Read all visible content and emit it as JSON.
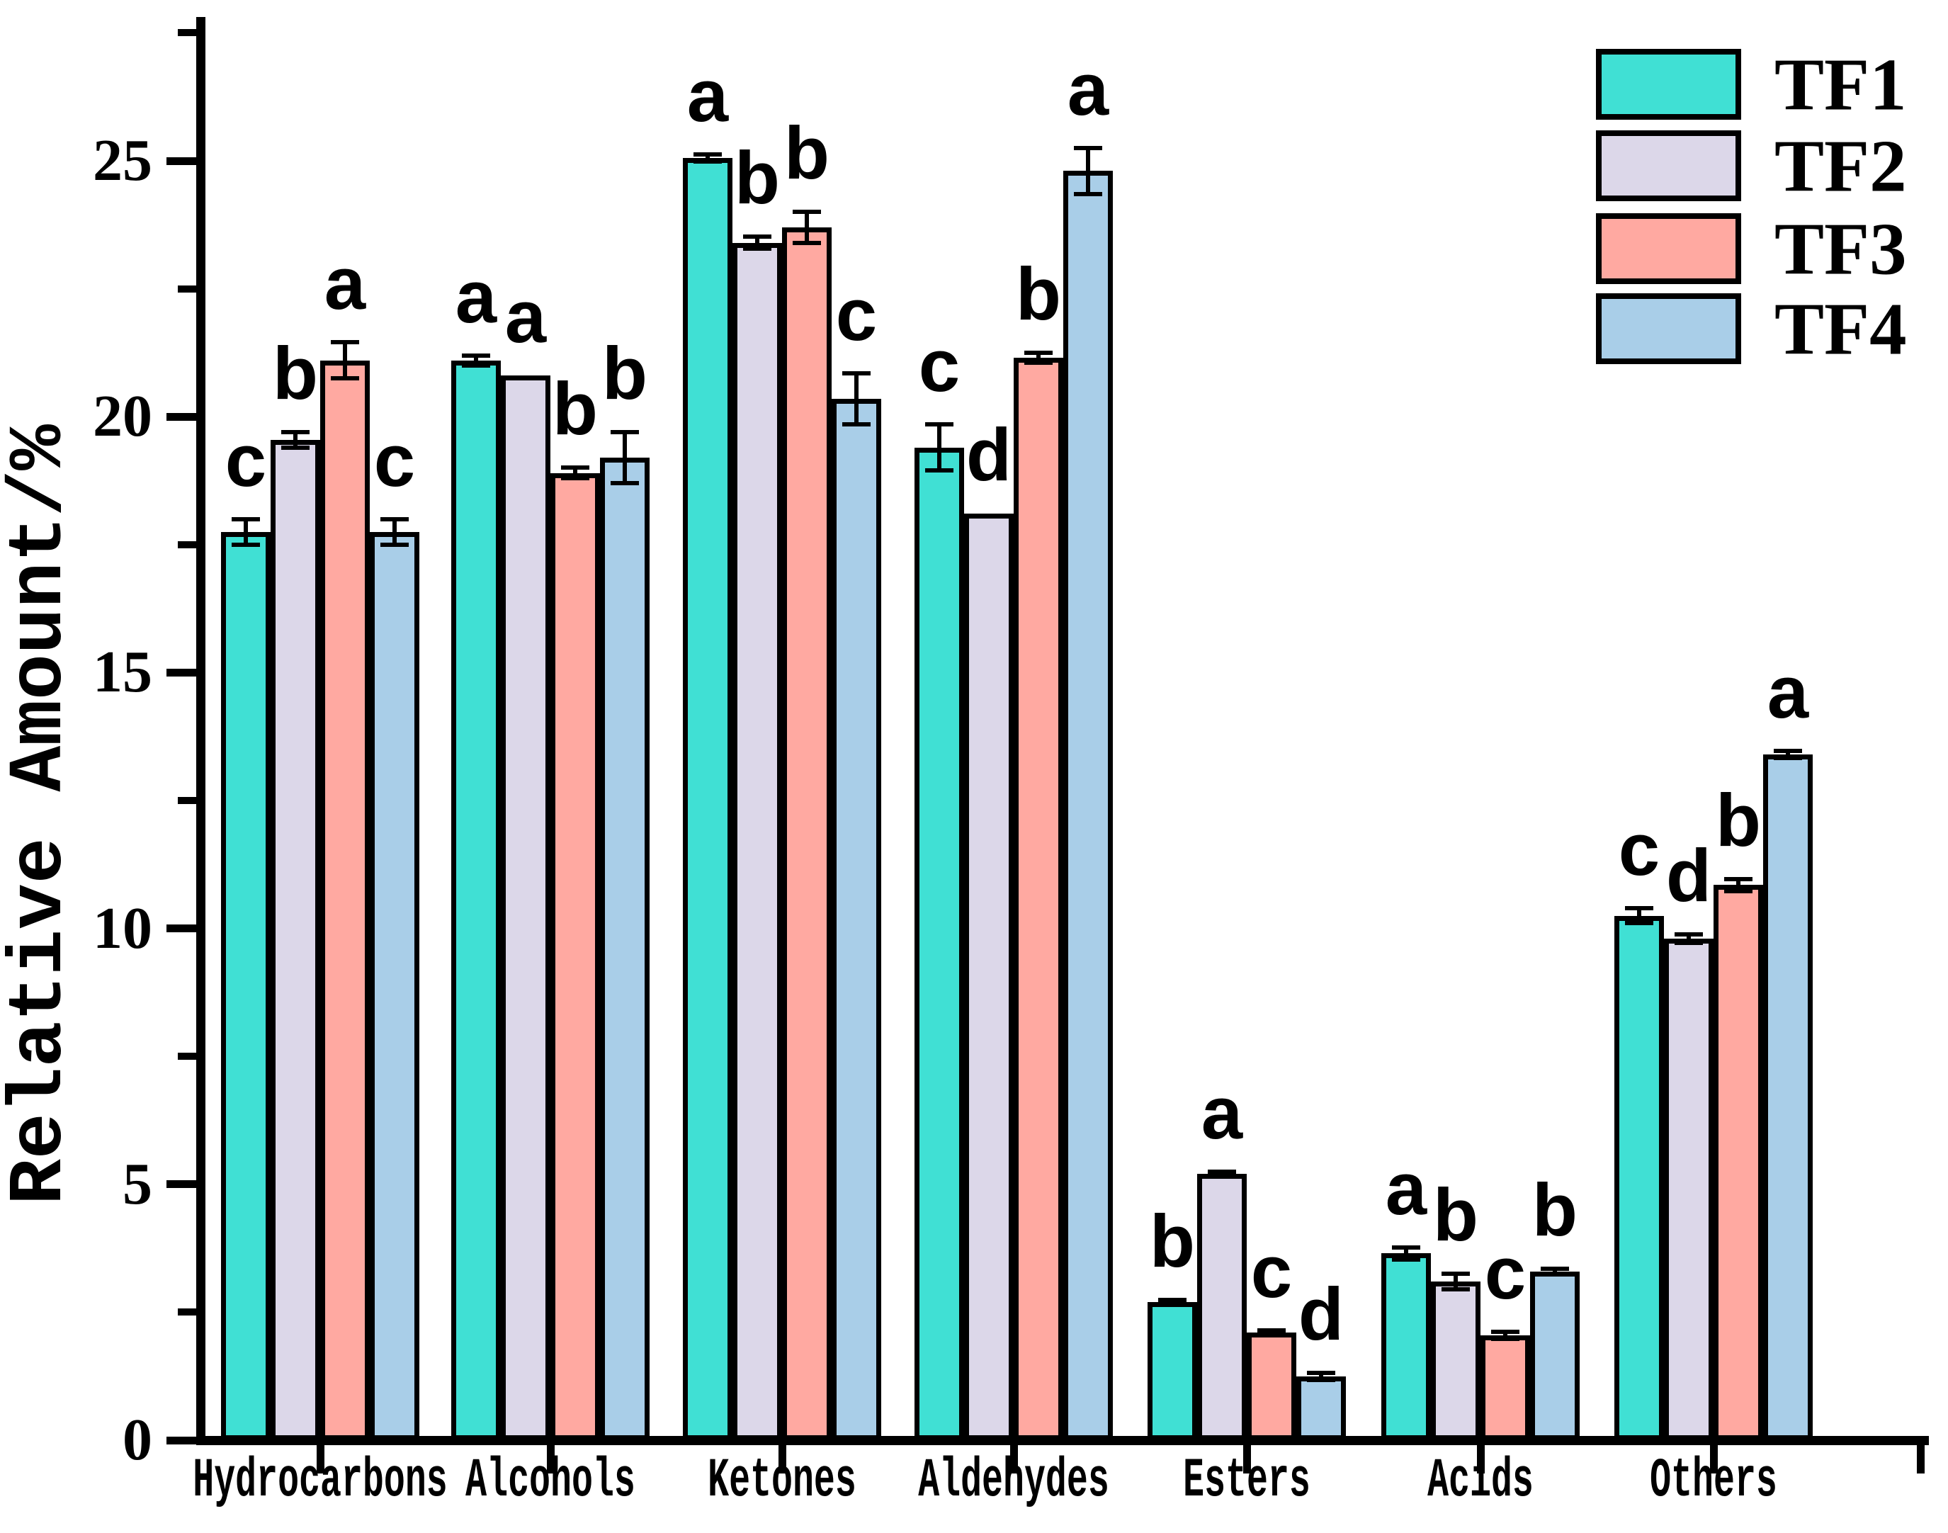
{
  "chart_data": {
    "type": "bar",
    "title": "",
    "xlabel": "",
    "ylabel": "Relative Amount/%",
    "ylim": [
      0,
      27.7
    ],
    "y_major_ticks": [
      0,
      5,
      10,
      15,
      20,
      25
    ],
    "y_minor_ticks": [
      2.5,
      7.5,
      12.5,
      17.5,
      22.5,
      27.5
    ],
    "grid": false,
    "legend_position": "top-right",
    "error_bars": true,
    "categories": [
      "Hydrocarbons",
      "Alcohols",
      "Ketones",
      "Aldehydes",
      "Esters",
      "Acids",
      "Others"
    ],
    "series": [
      {
        "name": "TF1",
        "color": "#40E0D4",
        "values": [
          17.75,
          21.1,
          25.05,
          19.4,
          2.7,
          3.65,
          10.25
        ],
        "errors": [
          0.25,
          0.1,
          0.07,
          0.45,
          0.04,
          0.12,
          0.15
        ],
        "sig_letters": [
          "c",
          "a",
          "a",
          "c",
          "b",
          "a",
          "c"
        ]
      },
      {
        "name": "TF2",
        "color": "#DCD7E9",
        "values": [
          19.55,
          20.8,
          23.4,
          18.1,
          5.2,
          3.1,
          9.8
        ],
        "errors": [
          0.15,
          0,
          0.12,
          0,
          0.05,
          0.15,
          0.08
        ],
        "sig_letters": [
          "b",
          "a",
          "b",
          "d",
          "a",
          "b",
          "d"
        ]
      },
      {
        "name": "TF3",
        "color": "#FFA9A1",
        "values": [
          21.1,
          18.9,
          23.7,
          21.15,
          2.1,
          2.05,
          10.85
        ],
        "errors": [
          0.35,
          0.1,
          0.3,
          0.1,
          0.05,
          0.07,
          0.12
        ],
        "sig_letters": [
          "a",
          "b",
          "b",
          "b",
          "c",
          "c",
          "b"
        ]
      },
      {
        "name": "TF4",
        "color": "#A9CEE8",
        "values": [
          17.75,
          19.2,
          20.35,
          24.8,
          1.25,
          3.3,
          13.4
        ],
        "errors": [
          0.25,
          0.5,
          0.5,
          0.45,
          0.07,
          0.05,
          0.07
        ],
        "sig_letters": [
          "c",
          "b",
          "c",
          "a",
          "d",
          "b",
          "a"
        ]
      }
    ]
  }
}
